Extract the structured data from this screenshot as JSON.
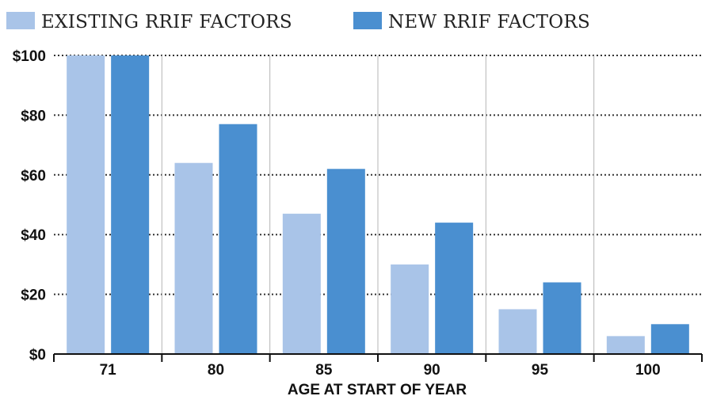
{
  "chart_data": {
    "type": "bar",
    "categories": [
      "71",
      "80",
      "85",
      "90",
      "95",
      "100"
    ],
    "series": [
      {
        "name": "EXISTING RRIF FACTORS",
        "values": [
          100,
          64,
          47,
          30,
          15,
          6
        ],
        "color": "#a9c4e8"
      },
      {
        "name": "NEW RRIF FACTORS",
        "values": [
          100,
          77,
          62,
          44,
          24,
          10
        ],
        "color": "#4a8fd0"
      }
    ],
    "y_ticks": [
      "$0",
      "$20",
      "$40",
      "$60",
      "$80",
      "$100"
    ],
    "ylim": [
      0,
      100
    ],
    "xlabel": "AGE AT START OF YEAR",
    "ylabel": "",
    "title": "",
    "grid": "dotted horizontal",
    "legend_position": "top-left"
  }
}
